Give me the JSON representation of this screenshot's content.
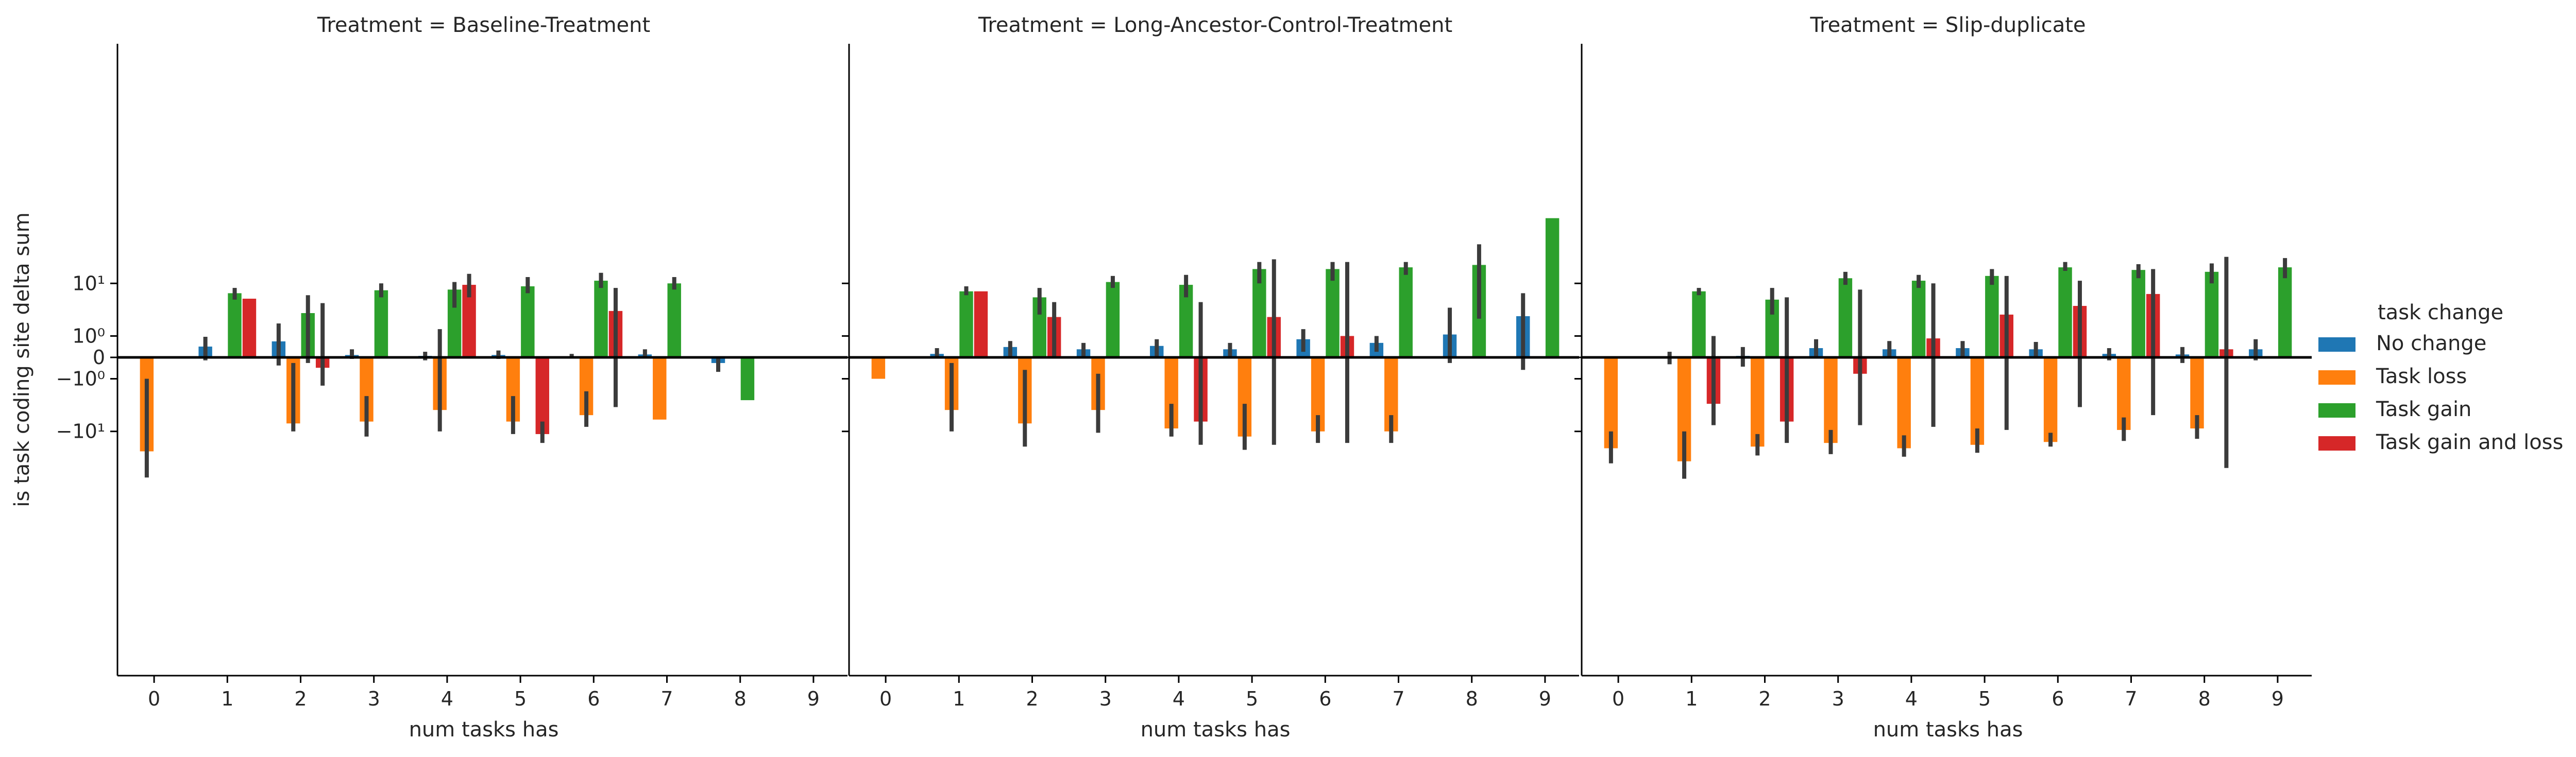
{
  "chart_data": {
    "type": "bar",
    "ylabel": "is task coding site delta sum",
    "xlabel": "num tasks has",
    "y_scale": "symlog",
    "y_ticks": [
      -10,
      -1,
      0,
      1,
      10
    ],
    "y_tick_labels": [
      "−10¹",
      "−10⁰",
      "0",
      "10⁰",
      "10¹"
    ],
    "ylim": [
      -65,
      110
    ],
    "categories": [
      "0",
      "1",
      "2",
      "3",
      "4",
      "5",
      "6",
      "7",
      "8",
      "9"
    ],
    "legend": {
      "title": "task change",
      "placement": "center-right",
      "entries": [
        {
          "label": "No change",
          "color": "#1f77b4"
        },
        {
          "label": "Task loss",
          "color": "#ff7f0e"
        },
        {
          "label": "Task gain",
          "color": "#2ca02c"
        },
        {
          "label": "Task gain and loss",
          "color": "#d62728"
        }
      ]
    },
    "hue_order": [
      "No change",
      "Task loss",
      "Task gain",
      "Task gain and loss"
    ],
    "panels": [
      {
        "title": "Treatment = Baseline-Treatment",
        "series": [
          {
            "name": "No change",
            "values": [
              null,
              0.42,
              0.68,
              0.08,
              0.05,
              0.08,
              0.04,
              0.1,
              -0.2,
              null
            ],
            "ci": [
              null,
              [
                -0.1,
                0.95
              ],
              [
                -0.3,
                2.0
              ],
              [
                -0.05,
                0.3
              ],
              [
                -0.1,
                0.2
              ],
              [
                -0.05,
                0.25
              ],
              [
                -0.03,
                0.12
              ],
              [
                0.0,
                0.3
              ],
              [
                -0.6,
                0.0
              ],
              null
            ]
          },
          {
            "name": "Task loss",
            "values": [
              -20,
              null,
              -7.5,
              -7.0,
              -4.5,
              -7.0,
              -5.5,
              -6.5,
              null,
              null
            ],
            "ci": [
              [
                -48,
                -1.0
              ],
              null,
              [
                -10,
                -0.2
              ],
              [
                -12,
                -2.5
              ],
              [
                -10,
                1.5
              ],
              [
                -11,
                -2.5
              ],
              [
                -8.5,
                -2.0
              ],
              null,
              null,
              null
            ]
          },
          {
            "name": "Task gain",
            "values": [
              null,
              7.0,
              3.2,
              7.8,
              8.0,
              9.0,
              11.0,
              10.0,
              -3.0,
              null
            ],
            "ci": [
              null,
              [
                5.5,
                8.5
              ],
              [
                -0.2,
                6.5
              ],
              [
                6.0,
                10.0
              ],
              [
                4.0,
                10.5
              ],
              [
                7.0,
                12.5
              ],
              [
                8.5,
                14.5
              ],
              [
                8.0,
                12.5
              ],
              null,
              null
            ]
          },
          {
            "name": "Task gain and loss",
            "values": [
              null,
              5.7,
              -0.4,
              null,
              9.5,
              -11.0,
              3.5,
              null,
              null,
              null
            ],
            "ci": [
              null,
              null,
              [
                -1.5,
                4.8
              ],
              null,
              [
                6.0,
                14.0
              ],
              [
                -15,
                -7
              ],
              [
                -4.0,
                8.5
              ],
              null,
              null,
              null
            ]
          }
        ]
      },
      {
        "title": "Treatment = Long-Ancestor-Control-Treatment",
        "series": [
          {
            "name": "No change",
            "values": [
              null,
              0.12,
              0.4,
              0.3,
              0.45,
              0.3,
              0.8,
              0.6,
              1.1,
              2.8
            ],
            "ci": [
              null,
              [
                0.0,
                0.35
              ],
              [
                0.0,
                0.7
              ],
              [
                0.0,
                0.6
              ],
              [
                0.0,
                0.8
              ],
              [
                0.0,
                0.6
              ],
              [
                0.2,
                1.5
              ],
              [
                0.2,
                1.0
              ],
              [
                -0.2,
                4.0
              ],
              [
                -0.5,
                7.0
              ]
            ],
            "open_ci_top": [
              false,
              false,
              false,
              false,
              false,
              false,
              false,
              false,
              false,
              true
            ]
          },
          {
            "name": "Task loss",
            "values": [
              -1.0,
              -4.5,
              -7.5,
              -4.5,
              -9.0,
              -12.0,
              -10.0,
              -10.0,
              null,
              null
            ],
            "ci": [
              null,
              [
                -10,
                -0.2
              ],
              [
                -17,
                -0.5
              ],
              [
                -10.5,
                -0.7
              ],
              [
                -12,
                -3.5
              ],
              [
                -19,
                -3.5
              ],
              [
                -15,
                -5.5
              ],
              [
                -15,
                -5.5
              ],
              null,
              null
            ]
          },
          {
            "name": "Task gain",
            "values": [
              null,
              7.5,
              6.0,
              10.5,
              9.5,
              16.5,
              16.5,
              17.5,
              19.0,
              90.0
            ],
            "ci": [
              null,
              [
                6.5,
                9.0
              ],
              [
                3.0,
                8.5
              ],
              [
                8.5,
                13.0
              ],
              [
                6.0,
                13.5
              ],
              [
                10.0,
                21.0
              ],
              [
                11.0,
                21.0
              ],
              [
                13.5,
                21.0
              ],
              [
                2.5,
                38.0
              ],
              null
            ]
          },
          {
            "name": "Task gain and loss",
            "values": [
              null,
              7.5,
              2.7,
              null,
              -7.0,
              2.7,
              1.0,
              null,
              null,
              null
            ],
            "ci": [
              null,
              null,
              [
                0.0,
                5.0
              ],
              null,
              [
                -16,
                5.0
              ],
              [
                -16,
                23
              ],
              [
                -15,
                21
              ],
              null,
              null,
              null
            ]
          }
        ]
      },
      {
        "title": "Treatment = Slip-duplicate",
        "series": [
          {
            "name": "No change",
            "values": [
              null,
              null,
              0.05,
              0.35,
              0.3,
              0.35,
              0.3,
              0.12,
              0.1,
              0.3
            ],
            "ci": [
              null,
              [
                -0.25,
                0.2
              ],
              [
                -0.35,
                0.4
              ],
              [
                0.0,
                0.8
              ],
              [
                0.0,
                0.7
              ],
              [
                0.0,
                0.7
              ],
              [
                0.0,
                0.65
              ],
              [
                -0.1,
                0.35
              ],
              [
                -0.2,
                0.4
              ],
              [
                -0.1,
                0.8
              ]
            ]
          },
          {
            "name": "Task loss",
            "values": [
              -18.0,
              -28.0,
              -17.0,
              -15.0,
              -18.0,
              -16.0,
              -14.5,
              -9.5,
              -9.0,
              null
            ],
            "ci": [
              [
                -30,
                -10
              ],
              [
                -50,
                -10
              ],
              [
                -23,
                -11
              ],
              [
                -22,
                -9.5
              ],
              [
                -24,
                -11.5
              ],
              [
                -21,
                -9
              ],
              [
                -17,
                -10.5
              ],
              [
                -14,
                -6
              ],
              [
                -13,
                -5.5
              ],
              null
            ]
          },
          {
            "name": "Task gain",
            "values": [
              null,
              7.5,
              5.5,
              12.0,
              11.0,
              13.0,
              17.5,
              16.0,
              15.0,
              17.5
            ],
            "ci": [
              null,
              [
                6.5,
                8.5
              ],
              [
                3.0,
                8.5
              ],
              [
                9.5,
                15.0
              ],
              [
                8.5,
                13.5
              ],
              [
                9.5,
                16.5
              ],
              [
                15.5,
                21.0
              ],
              [
                12.0,
                19.5
              ],
              [
                10.0,
                20.0
              ],
              [
                12.0,
                24.0
              ]
            ]
          },
          {
            "name": "Task gain and loss",
            "values": [
              null,
              -3.5,
              -7.0,
              -0.7,
              0.85,
              3.0,
              4.3,
              6.8,
              0.3,
              null
            ],
            "ci": [
              null,
              [
                -8,
                1.0
              ],
              [
                -15,
                6.0
              ],
              [
                -8,
                8.0
              ],
              [
                -8.5,
                10.0
              ],
              [
                -9.5,
                13.0
              ],
              [
                -4.0,
                11.0
              ],
              [
                -5.5,
                16.5
              ],
              [
                -35,
                25.0
              ],
              null
            ]
          }
        ]
      }
    ]
  }
}
